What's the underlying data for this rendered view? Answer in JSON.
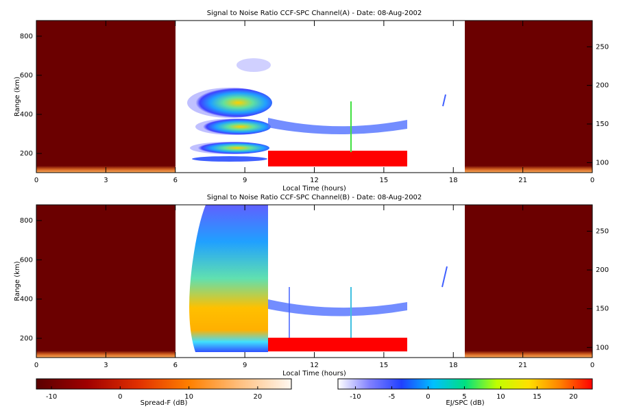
{
  "chart_data": [
    {
      "type": "heatmap",
      "title": "Signal to Noise Ratio CCF-SPC Channel(A) - Date: 08-Aug-2002",
      "xlabel": "Local Time (hours)",
      "ylabel": "Range (km)",
      "xlim": [
        0,
        24
      ],
      "xticks": [
        0,
        3,
        6,
        9,
        12,
        15,
        18,
        21,
        {
          "value": 24,
          "label": "0"
        }
      ],
      "ylim": [
        102,
        880
      ],
      "yticks": [
        200,
        400,
        600,
        800
      ],
      "y2lim": [
        87,
        284
      ],
      "y2ticks": [
        100,
        150,
        200,
        250
      ]
    },
    {
      "type": "heatmap",
      "title": "Signal to Noise Ratio CCF-SPC Channel(B) - Date: 08-Aug-2002",
      "xlabel": "Local Time (hours)",
      "ylabel": "Range (km)",
      "xlim": [
        0,
        24
      ],
      "xticks": [
        0,
        3,
        6,
        9,
        12,
        15,
        18,
        21,
        {
          "value": 24,
          "label": "0"
        }
      ],
      "ylim": [
        102,
        880
      ],
      "yticks": [
        200,
        400,
        600,
        800
      ],
      "y2lim": [
        87,
        284
      ],
      "y2ticks": [
        100,
        150,
        200,
        250
      ]
    },
    {
      "type": "colorbar",
      "xlabel": "Spread-F (dB)",
      "xlim": [
        -12.2,
        24.9
      ],
      "xticks": [
        -10,
        0,
        10,
        20
      ],
      "colors": [
        "#5a0000",
        "#a00000",
        "#e03000",
        "#ff8000",
        "#ffc080",
        "#fff8f0"
      ]
    },
    {
      "type": "colorbar",
      "xlabel": "EJ/SPC (dB)",
      "xlim": [
        -12.4,
        22.6
      ],
      "xticks": [
        -10,
        -5,
        0,
        5,
        10,
        15,
        20
      ],
      "colors": [
        "#ffffff",
        "#8080ff",
        "#2040ff",
        "#00c0ff",
        "#00e080",
        "#c0ff00",
        "#ffe000",
        "#ff8000",
        "#ff0000"
      ]
    }
  ]
}
